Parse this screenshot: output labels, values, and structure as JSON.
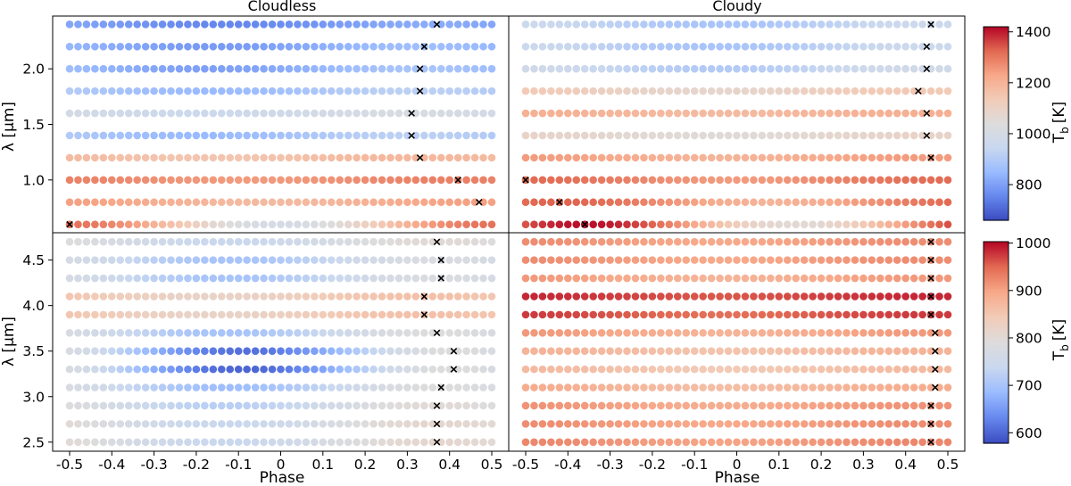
{
  "figure": {
    "x_label": "Phase",
    "y_label": "λ [μm]",
    "colorbar_label_main": "T",
    "colorbar_label_sub": "b",
    "colorbar_label_unit": "[K]"
  },
  "panels_meta": [
    {
      "title": "Cloudless"
    },
    {
      "title": "Cloudy"
    },
    {
      "title": ""
    },
    {
      "title": ""
    }
  ],
  "colorbars": [
    {
      "min": 660,
      "max": 1420,
      "ticks": [
        800,
        1000,
        1200,
        1400
      ],
      "colormap": "coolwarm"
    },
    {
      "min": 578,
      "max": 1003,
      "ticks": [
        600,
        700,
        800,
        900,
        1000
      ],
      "colormap": "coolwarm"
    }
  ],
  "colormap_stops": [
    "#3b4cc0",
    "#6688ee",
    "#9abbff",
    "#c9d8ef",
    "#dddcdc",
    "#f2cbb7",
    "#f7a889",
    "#e26952",
    "#b40426"
  ],
  "chart_data": {
    "type": "scatter",
    "x_axis": {
      "label": "Phase",
      "range": [
        -0.5,
        0.5
      ],
      "points_per_row": 51,
      "ticks": [
        -0.5,
        -0.4,
        -0.3,
        -0.2,
        -0.1,
        0,
        0.1,
        0.2,
        0.3,
        0.4,
        0.5
      ],
      "tick_labels": [
        "-0.5",
        "-0.4",
        "-0.3",
        "-0.2",
        "-0.1",
        "0",
        "0.1",
        "0.2",
        "0.3",
        "0.4",
        "0.5"
      ]
    },
    "panels": [
      {
        "title": "Cloudless",
        "colorbar": 0,
        "ylim": [
          0.525,
          2.475
        ],
        "yticks": [
          1.0,
          1.5,
          2.0
        ],
        "ytick_labels": [
          "1.0",
          "1.5",
          "2.0"
        ],
        "rows": [
          {
            "wavelength": 2.4,
            "t_min": 755,
            "t_max": 820,
            "peak_phase": 0.37
          },
          {
            "wavelength": 2.2,
            "t_min": 790,
            "t_max": 860,
            "peak_phase": 0.34
          },
          {
            "wavelength": 2.0,
            "t_min": 800,
            "t_max": 880,
            "peak_phase": 0.33
          },
          {
            "wavelength": 1.8,
            "t_min": 850,
            "t_max": 920,
            "peak_phase": 0.33
          },
          {
            "wavelength": 1.6,
            "t_min": 960,
            "t_max": 1010,
            "peak_phase": 0.31
          },
          {
            "wavelength": 1.4,
            "t_min": 850,
            "t_max": 920,
            "peak_phase": 0.31
          },
          {
            "wavelength": 1.2,
            "t_min": 1150,
            "t_max": 1190,
            "peak_phase": 0.33
          },
          {
            "wavelength": 1.0,
            "t_min": 1250,
            "t_max": 1290,
            "peak_phase": 0.42
          },
          {
            "wavelength": 0.8,
            "t_min": 1180,
            "t_max": 1240,
            "peak_phase": 0.47
          },
          {
            "wavelength": 0.6,
            "t_min": 1000,
            "t_max": 1310,
            "peak_phase": -0.5
          }
        ]
      },
      {
        "title": "Cloudy",
        "colorbar": 0,
        "ylim": [
          0.525,
          2.475
        ],
        "yticks": [
          1.0,
          1.5,
          2.0
        ],
        "ytick_labels": [
          "1.0",
          "1.5",
          "2.0"
        ],
        "rows": [
          {
            "wavelength": 2.4,
            "t_min": 880,
            "t_max": 960,
            "peak_phase": 0.46
          },
          {
            "wavelength": 2.2,
            "t_min": 880,
            "t_max": 960,
            "peak_phase": 0.45
          },
          {
            "wavelength": 2.0,
            "t_min": 900,
            "t_max": 980,
            "peak_phase": 0.45
          },
          {
            "wavelength": 1.8,
            "t_min": 1080,
            "t_max": 1140,
            "peak_phase": 0.43
          },
          {
            "wavelength": 1.6,
            "t_min": 1180,
            "t_max": 1210,
            "peak_phase": 0.45
          },
          {
            "wavelength": 1.4,
            "t_min": 1050,
            "t_max": 1090,
            "peak_phase": 0.45
          },
          {
            "wavelength": 1.2,
            "t_min": 1200,
            "t_max": 1250,
            "peak_phase": 0.46
          },
          {
            "wavelength": 1.0,
            "t_min": 1250,
            "t_max": 1320,
            "peak_phase": -0.5
          },
          {
            "wavelength": 0.8,
            "t_min": 1200,
            "t_max": 1330,
            "peak_phase": -0.42
          },
          {
            "wavelength": 0.6,
            "t_min": 1060,
            "t_max": 1410,
            "peak_phase": -0.36
          }
        ]
      },
      {
        "title": "",
        "colorbar": 1,
        "ylim": [
          2.4,
          4.8
        ],
        "yticks": [
          2.5,
          3.0,
          3.5,
          4.0,
          4.5
        ],
        "ytick_labels": [
          "2.5",
          "3.0",
          "3.5",
          "4.0",
          "4.5"
        ],
        "rows": [
          {
            "wavelength": 4.7,
            "t_min": 740,
            "t_max": 800,
            "peak_phase": 0.37
          },
          {
            "wavelength": 4.5,
            "t_min": 700,
            "t_max": 780,
            "peak_phase": 0.38
          },
          {
            "wavelength": 4.3,
            "t_min": 700,
            "t_max": 780,
            "peak_phase": 0.38
          },
          {
            "wavelength": 4.1,
            "t_min": 820,
            "t_max": 860,
            "peak_phase": 0.34
          },
          {
            "wavelength": 3.9,
            "t_min": 820,
            "t_max": 860,
            "peak_phase": 0.34
          },
          {
            "wavelength": 3.7,
            "t_min": 700,
            "t_max": 790,
            "peak_phase": 0.37
          },
          {
            "wavelength": 3.5,
            "t_min": 610,
            "t_max": 790,
            "peak_phase": 0.41
          },
          {
            "wavelength": 3.3,
            "t_min": 600,
            "t_max": 790,
            "peak_phase": 0.41
          },
          {
            "wavelength": 3.1,
            "t_min": 690,
            "t_max": 790,
            "peak_phase": 0.38
          },
          {
            "wavelength": 2.9,
            "t_min": 720,
            "t_max": 800,
            "peak_phase": 0.37
          },
          {
            "wavelength": 2.7,
            "t_min": 740,
            "t_max": 810,
            "peak_phase": 0.37
          },
          {
            "wavelength": 2.5,
            "t_min": 740,
            "t_max": 810,
            "peak_phase": 0.37
          }
        ]
      },
      {
        "title": "",
        "colorbar": 1,
        "ylim": [
          2.4,
          4.8
        ],
        "yticks": [
          2.5,
          3.0,
          3.5,
          4.0,
          4.5
        ],
        "ytick_labels": [
          "2.5",
          "3.0",
          "3.5",
          "4.0",
          "4.5"
        ],
        "rows": [
          {
            "wavelength": 4.7,
            "t_min": 895,
            "t_max": 920,
            "peak_phase": 0.46
          },
          {
            "wavelength": 4.5,
            "t_min": 895,
            "t_max": 920,
            "peak_phase": 0.46
          },
          {
            "wavelength": 4.3,
            "t_min": 880,
            "t_max": 910,
            "peak_phase": 0.46
          },
          {
            "wavelength": 4.1,
            "t_min": 960,
            "t_max": 985,
            "peak_phase": 0.46
          },
          {
            "wavelength": 3.9,
            "t_min": 945,
            "t_max": 975,
            "peak_phase": 0.46
          },
          {
            "wavelength": 3.7,
            "t_min": 880,
            "t_max": 910,
            "peak_phase": 0.47
          },
          {
            "wavelength": 3.5,
            "t_min": 855,
            "t_max": 880,
            "peak_phase": 0.47
          },
          {
            "wavelength": 3.3,
            "t_min": 845,
            "t_max": 870,
            "peak_phase": 0.47
          },
          {
            "wavelength": 3.1,
            "t_min": 865,
            "t_max": 890,
            "peak_phase": 0.47
          },
          {
            "wavelength": 2.9,
            "t_min": 890,
            "t_max": 915,
            "peak_phase": 0.46
          },
          {
            "wavelength": 2.7,
            "t_min": 895,
            "t_max": 920,
            "peak_phase": 0.46
          },
          {
            "wavelength": 2.5,
            "t_min": 900,
            "t_max": 925,
            "peak_phase": 0.46
          }
        ]
      }
    ]
  }
}
